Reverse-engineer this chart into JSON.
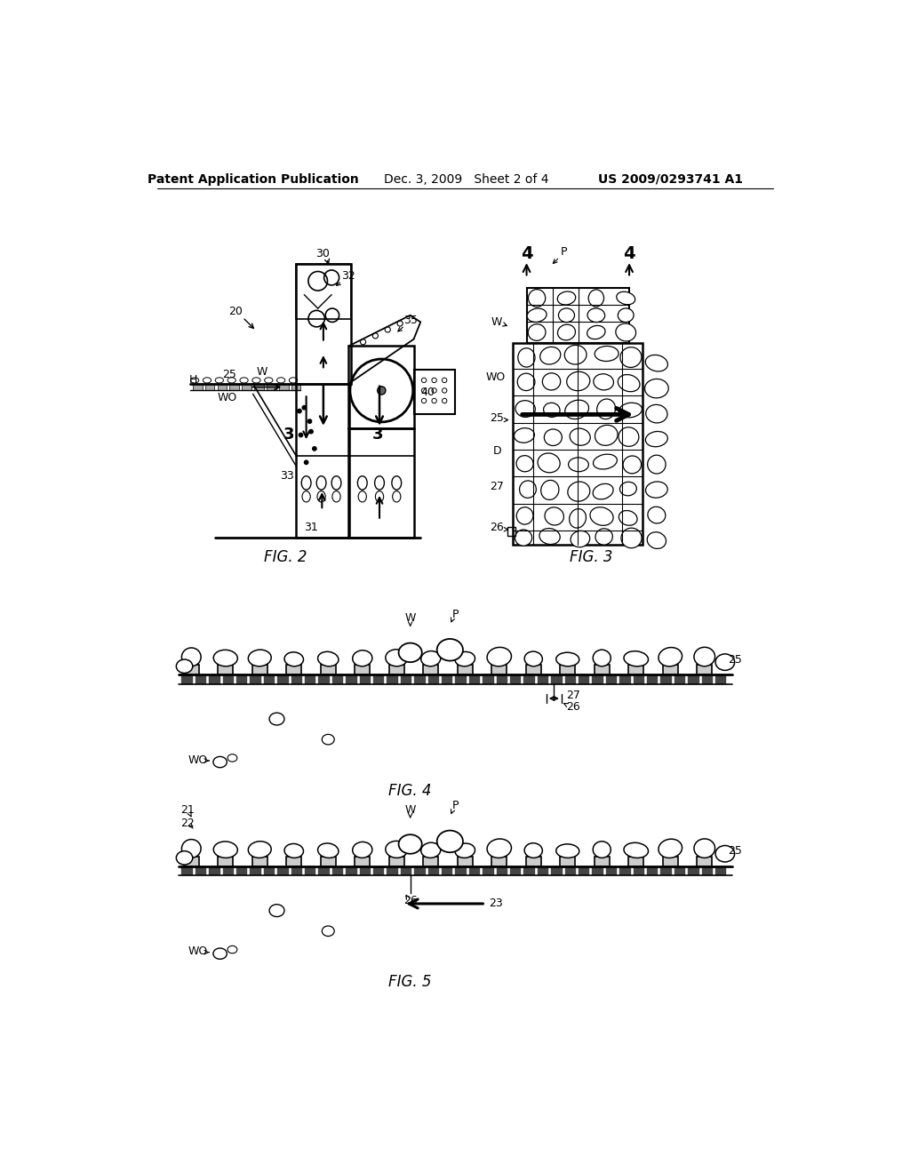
{
  "background_color": "#ffffff",
  "header_left": "Patent Application Publication",
  "header_mid": "Dec. 3, 2009   Sheet 2 of 4",
  "header_right": "US 2009/0293741 A1",
  "line_color": "#000000"
}
